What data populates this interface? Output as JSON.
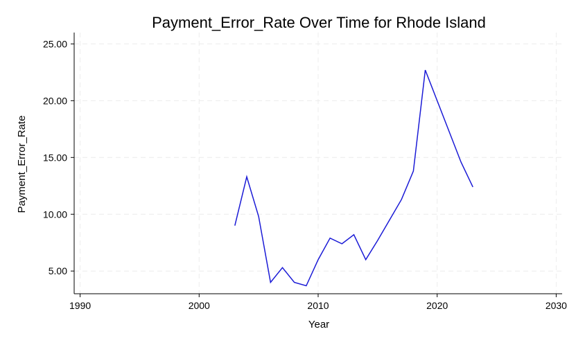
{
  "chart_data": {
    "type": "line",
    "title": "Payment_Error_Rate Over Time for Rhode Island",
    "xlabel": "Year",
    "ylabel": "Payment_Error_Rate",
    "xlim": [
      1989.5,
      2030.5
    ],
    "ylim": [
      3.0,
      26.0
    ],
    "xticks": [
      1990,
      2000,
      2010,
      2020,
      2030
    ],
    "yticks": [
      5,
      10,
      15,
      20,
      25
    ],
    "yticks_labels": [
      "5.00",
      "10.00",
      "15.00",
      "20.00",
      "25.00"
    ],
    "grid": true,
    "line_color": "#1a1ad6",
    "series": [
      {
        "x": [
          2003,
          2004,
          2005,
          2006,
          2007,
          2008,
          2009,
          2010,
          2011,
          2012,
          2013,
          2014,
          2015,
          2016,
          2017,
          2018,
          2019,
          2020,
          2021,
          2022,
          2023
        ],
        "y": [
          9.0,
          13.3,
          9.8,
          4.0,
          5.3,
          4.0,
          3.7,
          6.0,
          7.9,
          7.4,
          8.2,
          6.0,
          7.7,
          9.5,
          11.3,
          13.8,
          22.7,
          20.0,
          17.3,
          14.6,
          12.4
        ]
      }
    ]
  }
}
